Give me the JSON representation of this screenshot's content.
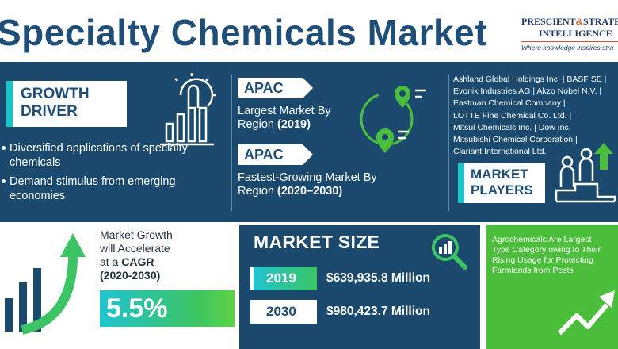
{
  "header": {
    "title": "Specialty Chemicals Market",
    "logo_line1_a": "PRESCIENT",
    "logo_amp": "&",
    "logo_line1_b": "STRATEG",
    "logo_line2": "INTELLIGENCE",
    "logo_tagline": "Where knowledge inspires stra"
  },
  "growth_driver": {
    "label_line1": "GROWTH",
    "label_line2": "DRIVER",
    "bullets": [
      "Diversified applications of specialty chemicals",
      "Demand stimulus from emerging economies"
    ]
  },
  "regions": {
    "largest_tag": "APAC",
    "largest_text": "Largest Market By Region",
    "largest_year": "(2019)",
    "fastest_tag": "APAC",
    "fastest_text": "Fastest-Growing Market By Region",
    "fastest_years": "(2020–2030)"
  },
  "market_players": {
    "lines": [
      "Ashland Global Holdings Inc.  |  BASF SE |",
      "Evonik Industries AG | Akzo Nobel N.V. |",
      "Eastman Chemical Company |",
      "LOTTE Fine Chemical Co. Ltd. |",
      "Mitsui Chemicals Inc. | Dow Inc.",
      "Mitsubishi Chemical Corporation |",
      "Clariant International Ltd."
    ],
    "label_line1": "MARKET",
    "label_line2": "PLAYERS"
  },
  "growth": {
    "text_line1": "Market Growth",
    "text_line2": "will Accelerate",
    "text_line3a": "at a ",
    "text_line3b": "CAGR",
    "text_line4": "(2020-2030)",
    "cagr_value": "5.5%"
  },
  "market_size": {
    "title": "MARKET SIZE",
    "rows": [
      {
        "year": "2019",
        "value": "$639,935.8 Million"
      },
      {
        "year": "2030",
        "value": "$980,423.7 Million"
      }
    ]
  },
  "agro": {
    "text": "Agrochemicals Are Largest Type Category owing to Their Rising Usage for Protecting Farmlands from Pests"
  },
  "colors": {
    "navy": "#1b4a6e",
    "title_blue": "#1f4e79",
    "teal": "#18c5c9",
    "green": "#4bbf3c",
    "orange": "#e05a1b"
  }
}
